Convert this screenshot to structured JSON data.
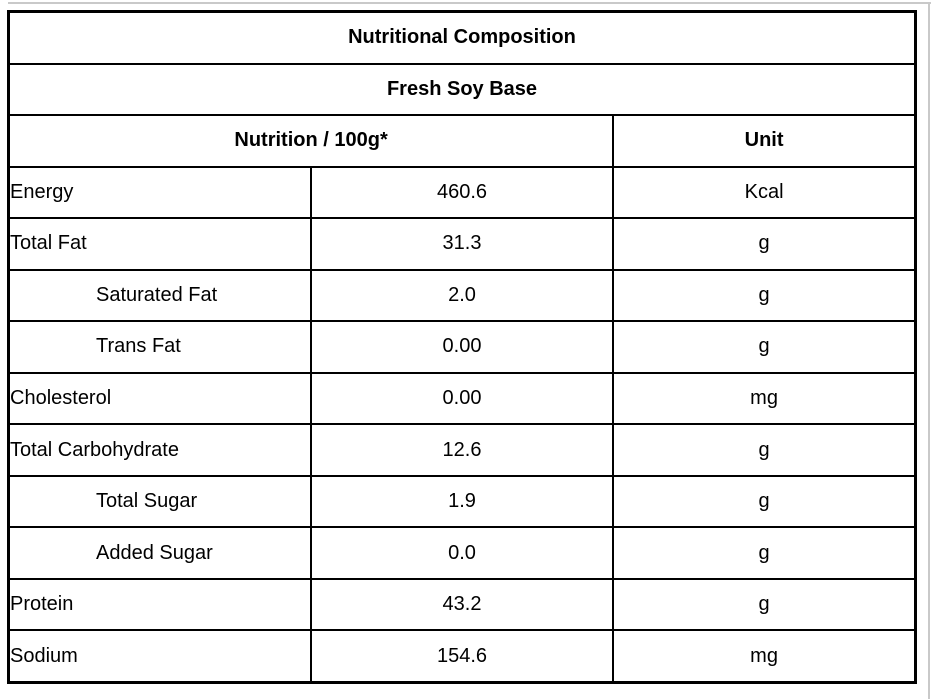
{
  "page": {
    "background": "#ffffff",
    "border_color": "#000000",
    "edge_color": "#c9c9c9"
  },
  "table": {
    "title": "Nutritional Composition",
    "subtitle": "Fresh Soy Base",
    "columns": {
      "nutrition_header": "Nutrition / 100g*",
      "unit_header": "Unit"
    },
    "rows": [
      {
        "label": "Energy",
        "value": "460.6",
        "unit": "Kcal",
        "indent": false
      },
      {
        "label": "Total Fat",
        "value": "31.3",
        "unit": "g",
        "indent": false
      },
      {
        "label": "Saturated Fat",
        "value": "2.0",
        "unit": "g",
        "indent": true
      },
      {
        "label": "Trans Fat",
        "value": "0.00",
        "unit": "g",
        "indent": true
      },
      {
        "label": "Cholesterol",
        "value": "0.00",
        "unit": "mg",
        "indent": false
      },
      {
        "label": "Total Carbohydrate",
        "value": "12.6",
        "unit": "g",
        "indent": false
      },
      {
        "label": "Total Sugar",
        "value": "1.9",
        "unit": "g",
        "indent": true
      },
      {
        "label": "Added Sugar",
        "value": "0.0",
        "unit": "g",
        "indent": true
      },
      {
        "label": "Protein",
        "value": "43.2",
        "unit": "g",
        "indent": false
      },
      {
        "label": "Sodium",
        "value": "154.6",
        "unit": "mg",
        "indent": false
      }
    ]
  }
}
